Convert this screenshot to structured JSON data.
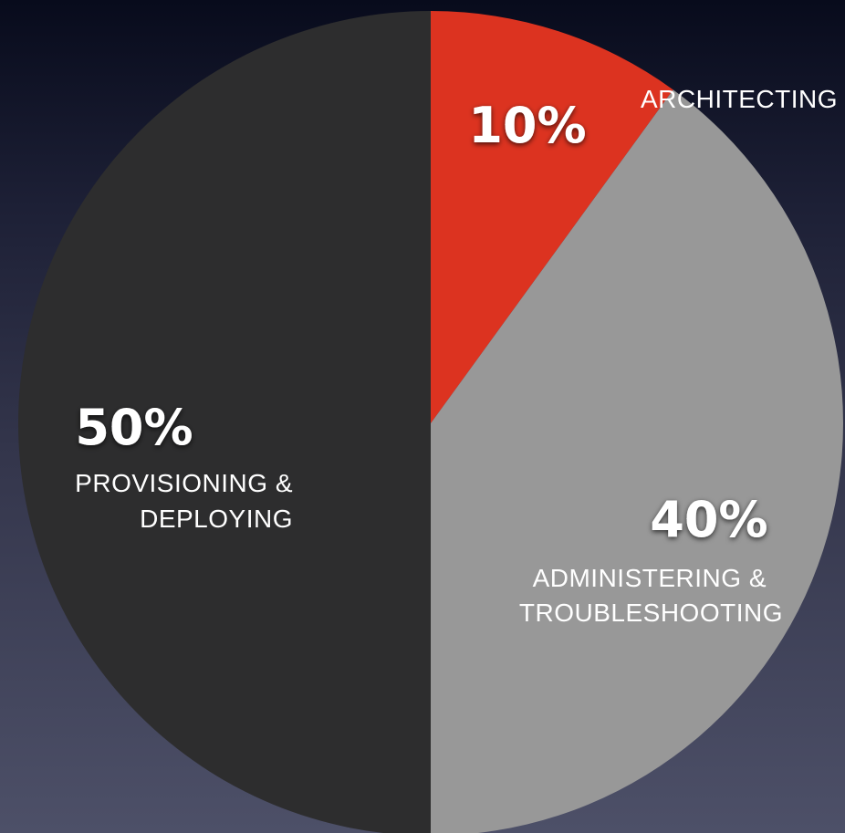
{
  "chart_data": {
    "type": "pie",
    "start_angle_deg": 0,
    "direction": "clockwise",
    "slices": [
      {
        "label_lines": [
          "ARCHITECTING"
        ],
        "value": 10,
        "value_label": "10%",
        "color": "#dc3320"
      },
      {
        "label_lines": [
          "ADMINISTERING &",
          "TROUBLESHOOTING"
        ],
        "value": 40,
        "value_label": "40%",
        "color": "#989898"
      },
      {
        "label_lines": [
          "PROVISIONING &",
          "DEPLOYING"
        ],
        "value": 50,
        "value_label": "50%",
        "color": "#2d2d2e"
      }
    ],
    "value_label_color": "#ffffff",
    "category_label_color": "#ffffff"
  }
}
